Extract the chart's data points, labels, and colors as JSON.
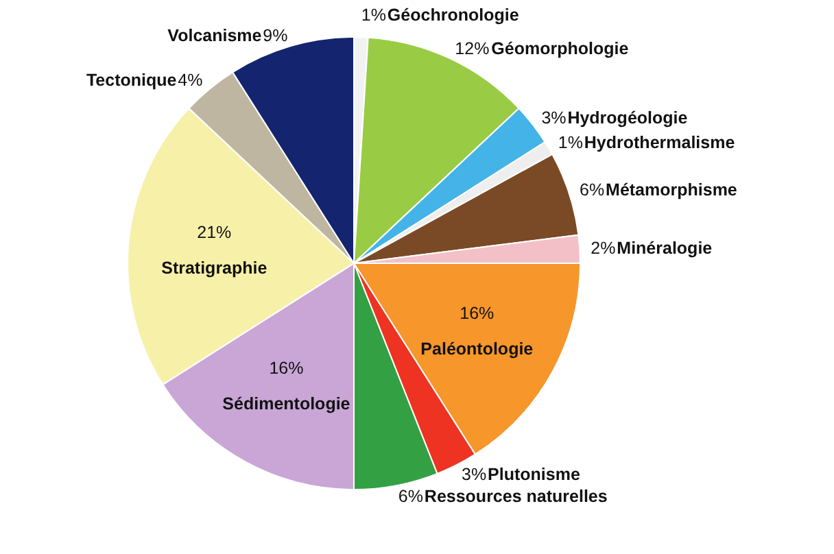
{
  "chart_data": {
    "type": "pie",
    "categories": [
      "Géochronologie",
      "Géomorphologie",
      "Hydrogéologie",
      "Hydrothermalisme",
      "Métamorphisme",
      "Minéralogie",
      "Paléontologie",
      "Plutonisme",
      "Ressources naturelles",
      "Sédimentologie",
      "Stratigraphie",
      "Tectonique",
      "Volcanisme"
    ],
    "values": [
      1,
      12,
      3,
      1,
      6,
      2,
      16,
      3,
      6,
      16,
      21,
      4,
      9
    ],
    "value_labels": [
      "1%",
      "12%",
      "3%",
      "1%",
      "6%",
      "2%",
      "16%",
      "3%",
      "6%",
      "16%",
      "21%",
      "4%",
      "9%"
    ],
    "colors": [
      "#f2f2f2",
      "#99cc44",
      "#44b4e8",
      "#eeeeee",
      "#7a4a26",
      "#f4c0c8",
      "#f7962a",
      "#ee3322",
      "#33a044",
      "#c9a6d6",
      "#f7f0a8",
      "#beb6a0",
      "#14246e"
    ]
  }
}
